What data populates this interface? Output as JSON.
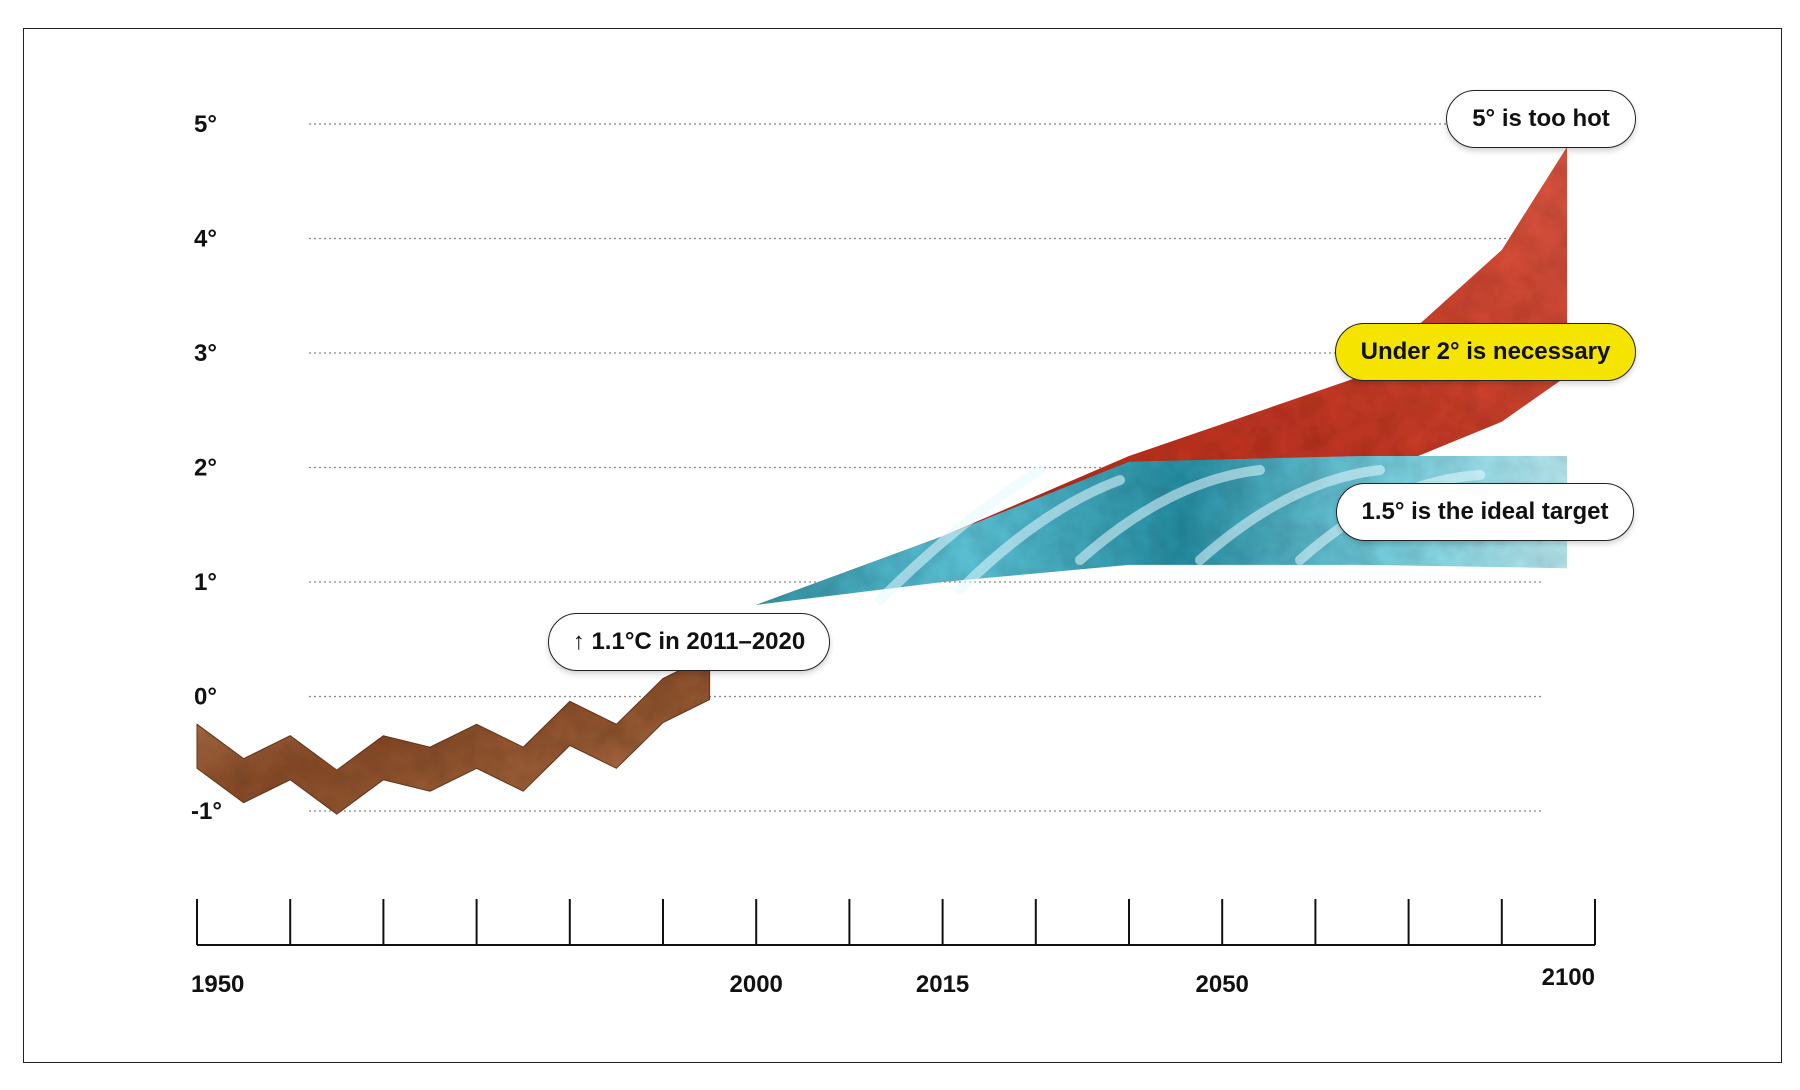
{
  "chart_data": {
    "type": "area",
    "title": "",
    "xlabel": "",
    "ylabel": "",
    "y_ticks": [
      {
        "value": 5,
        "label": "5°"
      },
      {
        "value": 4,
        "label": "4°"
      },
      {
        "value": 3,
        "label": "3°"
      },
      {
        "value": 2,
        "label": "2°"
      },
      {
        "value": 1,
        "label": "1°"
      },
      {
        "value": 0,
        "label": "0°"
      },
      {
        "value": -1,
        "label": "-1°"
      }
    ],
    "x_labels": [
      {
        "tick": 0,
        "label": "1950"
      },
      {
        "tick": 6,
        "label": "2000"
      },
      {
        "tick": 8,
        "label": "2015"
      },
      {
        "tick": 11,
        "label": "2050"
      },
      {
        "tick": 15,
        "label": "2100"
      }
    ],
    "x_tick_count": 16,
    "ylim": [
      -1,
      5
    ],
    "grid": true,
    "colors": {
      "historical": "#9a5a34",
      "high_warming": "#c5301f",
      "ideal_target": "#46b6cb",
      "callout_highlight": "#f5e300"
    },
    "series": [
      {
        "id": "historical",
        "x": [
          0,
          0.5,
          1,
          1.5,
          2,
          2.5,
          3,
          3.5,
          4,
          4.5,
          5,
          5.5
        ],
        "values": [
          -0.4,
          -0.7,
          -0.5,
          -0.8,
          -0.5,
          -0.6,
          -0.4,
          -0.6,
          -0.2,
          -0.4,
          0.0,
          0.2
        ]
      },
      {
        "id": "high_warming",
        "x": [
          5.5,
          6,
          8,
          10,
          12.5,
          14,
          14.7
        ],
        "upper": [
          0.3,
          0.8,
          1.4,
          2.1,
          2.8,
          3.9,
          4.8
        ],
        "lower": [
          0.3,
          0.8,
          1.1,
          1.7,
          1.9,
          2.4,
          2.8
        ]
      },
      {
        "id": "ideal_target",
        "x": [
          5.5,
          6,
          8,
          10,
          12.5,
          14,
          14.7
        ],
        "upper": [
          0.3,
          0.8,
          1.4,
          2.05,
          2.1,
          2.1,
          2.1
        ],
        "lower": [
          0.3,
          0.8,
          1.0,
          1.15,
          1.15,
          1.13,
          1.12
        ]
      }
    ],
    "annotations": [
      {
        "id": "hot",
        "text": "5° is too hot",
        "style": "white"
      },
      {
        "id": "necessary",
        "text": "Under 2° is necessary",
        "style": "yellow"
      },
      {
        "id": "ideal",
        "text": "1.5° is the ideal target",
        "style": "white"
      },
      {
        "id": "current",
        "text": "↑ 1.1°C in 2011–2020",
        "style": "white"
      }
    ]
  }
}
